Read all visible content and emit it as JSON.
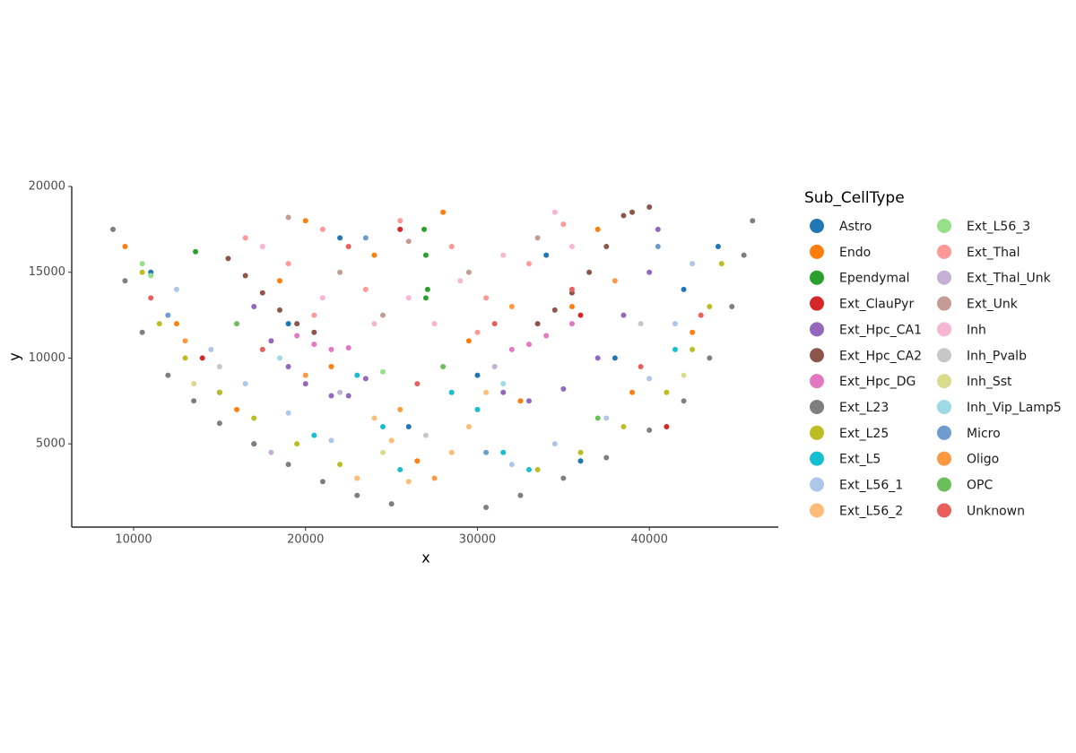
{
  "chart_data": {
    "type": "scatter",
    "xlabel": "x",
    "ylabel": "y",
    "legend_title": "Sub_CellType",
    "legend": "right",
    "grid": false,
    "xlim": [
      6400,
      47500
    ],
    "ylim": [
      150,
      20000
    ],
    "xticks": [
      10000,
      20000,
      30000,
      40000
    ],
    "yticks": [
      5000,
      10000,
      15000,
      20000
    ],
    "series": [
      {
        "name": "Astro",
        "color": "#1f77b4",
        "x": [
          11000,
          15000,
          19000,
          22000,
          26000,
          30000,
          34000,
          38000,
          42000,
          44000,
          17000,
          36000
        ],
        "y": [
          15000,
          8000,
          12000,
          17000,
          6000,
          9000,
          16000,
          10000,
          14000,
          16500,
          5000,
          4000
        ]
      },
      {
        "name": "Endo",
        "color": "#ff7f0e",
        "x": [
          9500,
          12500,
          16000,
          18500,
          21500,
          24000,
          26500,
          29500,
          32500,
          35500,
          39000,
          42500,
          20000,
          28000,
          37000,
          23000
        ],
        "y": [
          16500,
          12000,
          7000,
          14500,
          9500,
          16000,
          4000,
          11000,
          7500,
          13000,
          8000,
          11500,
          18000,
          18500,
          17500,
          3000
        ]
      },
      {
        "name": "Ependymal",
        "color": "#2ca02c",
        "x": [
          27000,
          27100,
          27000,
          26900,
          13600
        ],
        "y": [
          13500,
          14000,
          16000,
          17500,
          16200
        ]
      },
      {
        "name": "Ext_ClauPyr",
        "color": "#d62728",
        "x": [
          14000,
          25500,
          36000,
          41000
        ],
        "y": [
          10000,
          17500,
          12500,
          6000
        ]
      },
      {
        "name": "Ext_Hpc_CA1",
        "color": "#9467bd",
        "x": [
          17000,
          18000,
          19000,
          20000,
          21500,
          22500,
          23500,
          31500,
          33000,
          35000,
          37000,
          38500,
          40000,
          40500
        ],
        "y": [
          13000,
          11000,
          9500,
          8500,
          7800,
          7800,
          8800,
          8000,
          7500,
          8200,
          10000,
          12500,
          15000,
          17500
        ]
      },
      {
        "name": "Ext_Hpc_CA2",
        "color": "#8c564b",
        "x": [
          15500,
          16500,
          17500,
          18500,
          19500,
          20500,
          37500,
          36500,
          35500,
          34500,
          33500,
          39000,
          40000,
          38500
        ],
        "y": [
          15800,
          14800,
          13800,
          12800,
          12000,
          11500,
          16500,
          15000,
          13800,
          12800,
          12000,
          18500,
          18800,
          18300
        ]
      },
      {
        "name": "Ext_Hpc_DG",
        "color": "#e377c2",
        "x": [
          19500,
          20500,
          21500,
          22500,
          32000,
          33000,
          34000,
          35500
        ],
        "y": [
          11300,
          10800,
          10500,
          10600,
          10500,
          10800,
          11300,
          12000
        ]
      },
      {
        "name": "Ext_L23",
        "color": "#7f7f7f",
        "x": [
          8800,
          9500,
          10500,
          12000,
          13500,
          15000,
          17000,
          19000,
          21000,
          23000,
          25000,
          30500,
          32500,
          35000,
          37500,
          40000,
          42000,
          43500,
          44800,
          45500,
          46000
        ],
        "y": [
          17500,
          14500,
          11500,
          9000,
          7500,
          6200,
          5000,
          3800,
          2800,
          2000,
          1500,
          1300,
          2000,
          3000,
          4200,
          5800,
          7500,
          10000,
          13000,
          16000,
          18000
        ]
      },
      {
        "name": "Ext_L25",
        "color": "#bcbd22",
        "x": [
          10500,
          11500,
          13000,
          15000,
          17000,
          19500,
          22000,
          33500,
          36000,
          38500,
          41000,
          42500,
          43500,
          44200
        ],
        "y": [
          15000,
          12000,
          10000,
          8000,
          6500,
          5000,
          3800,
          3500,
          4500,
          6000,
          8000,
          10500,
          13000,
          15500
        ]
      },
      {
        "name": "Ext_L5",
        "color": "#17becf",
        "x": [
          20500,
          23000,
          24500,
          25500,
          28500,
          30000,
          31500,
          33000,
          41500
        ],
        "y": [
          5500,
          9000,
          6000,
          3500,
          8000,
          7000,
          4500,
          3500,
          10500
        ]
      },
      {
        "name": "Ext_L56_1",
        "color": "#aec7e8",
        "x": [
          12500,
          14500,
          16500,
          19000,
          21500,
          32000,
          34500,
          37500,
          40000,
          41500,
          42500
        ],
        "y": [
          14000,
          10500,
          8500,
          6800,
          5200,
          3800,
          5000,
          6500,
          8800,
          12000,
          15500
        ]
      },
      {
        "name": "Ext_L56_2",
        "color": "#ffbb78",
        "x": [
          24000,
          25000,
          26000,
          28500,
          29500,
          30500,
          23000
        ],
        "y": [
          6500,
          5200,
          2800,
          4500,
          6000,
          8000,
          3000
        ]
      },
      {
        "name": "Ext_L56_3",
        "color": "#98df8a",
        "x": [
          10500,
          24500,
          11000
        ],
        "y": [
          15500,
          9200,
          14800
        ]
      },
      {
        "name": "Ext_Thal",
        "color": "#ff9896",
        "x": [
          16500,
          19000,
          21000,
          23500,
          25500,
          28500,
          30500,
          33000,
          35000,
          30000,
          20500
        ],
        "y": [
          17000,
          15500,
          17500,
          14000,
          18000,
          16500,
          13500,
          15500,
          17800,
          11500,
          12500
        ]
      },
      {
        "name": "Ext_Thal_Unk",
        "color": "#c5b0d5",
        "x": [
          22000,
          31000,
          18000
        ],
        "y": [
          8000,
          9500,
          4500
        ]
      },
      {
        "name": "Ext_Unk",
        "color": "#c49c94",
        "x": [
          22000,
          26000,
          29500,
          33500,
          19000,
          24500
        ],
        "y": [
          15000,
          16800,
          15000,
          17000,
          18200,
          12500
        ]
      },
      {
        "name": "Inh",
        "color": "#f7b6d2",
        "x": [
          17500,
          21000,
          24000,
          27500,
          29000,
          31500,
          34500,
          35500,
          26000
        ],
        "y": [
          16500,
          13500,
          12000,
          12000,
          14500,
          16000,
          18500,
          16500,
          13500
        ]
      },
      {
        "name": "Inh_Pvalb",
        "color": "#c7c7c7",
        "x": [
          15000,
          27000,
          39500
        ],
        "y": [
          9500,
          5500,
          12000
        ]
      },
      {
        "name": "Inh_Sst",
        "color": "#dbdb8d",
        "x": [
          13500,
          42000,
          24500
        ],
        "y": [
          8500,
          9000,
          4500
        ]
      },
      {
        "name": "Inh_Vip_Lamp5",
        "color": "#9edae5",
        "x": [
          18500,
          31500
        ],
        "y": [
          10000,
          8500
        ]
      },
      {
        "name": "Micro",
        "color": "#6f9bd1",
        "x": [
          12000,
          23500,
          30500,
          40500
        ],
        "y": [
          12500,
          17000,
          4500,
          16500
        ]
      },
      {
        "name": "Oligo",
        "color": "#fd9a40",
        "x": [
          13000,
          20000,
          27500,
          32000,
          38000,
          25500
        ],
        "y": [
          11000,
          9000,
          3000,
          13000,
          14500,
          7000
        ]
      },
      {
        "name": "OPC",
        "color": "#6abf5a",
        "x": [
          16000,
          28000,
          37000
        ],
        "y": [
          12000,
          9500,
          6500
        ]
      },
      {
        "name": "Unknown",
        "color": "#e8605e",
        "x": [
          11000,
          17500,
          22500,
          26500,
          31000,
          35500,
          39500,
          43000
        ],
        "y": [
          13500,
          10500,
          16500,
          8500,
          12000,
          14000,
          9500,
          12500
        ]
      }
    ]
  }
}
